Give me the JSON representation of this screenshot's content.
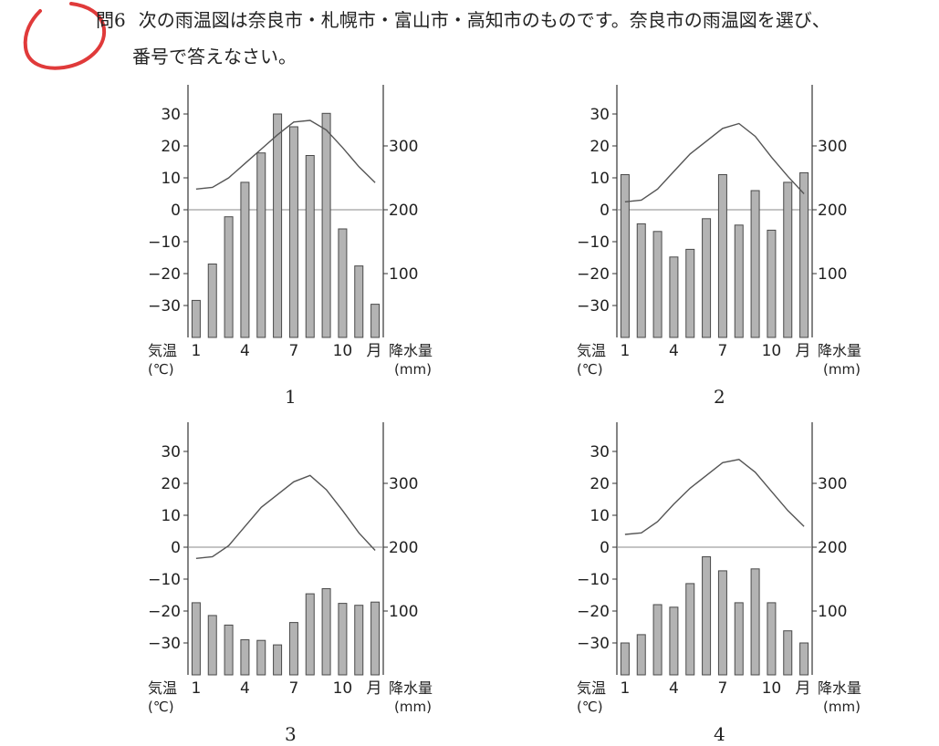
{
  "question": {
    "number": "問6",
    "text_line1": "次の雨温図は奈良市・札幌市・富山市・高知市のものです。奈良市の雨温図を選び、",
    "text_line2": "番号で答えなさい。"
  },
  "axis_labels": {
    "left": [
      "気温",
      "(℃)"
    ],
    "right": [
      "降水量",
      "(mm)"
    ],
    "month_unit": "月"
  },
  "colors": {
    "bar_fill": "#b3b3b3",
    "bar_stroke": "#4a4a4a",
    "line": "#555555",
    "red_mark": "#e03a3a"
  },
  "chart_data": [
    {
      "type": "bar",
      "number": "1",
      "months": [
        1,
        2,
        3,
        4,
        5,
        6,
        7,
        8,
        9,
        10,
        11,
        12
      ],
      "x_tick_labels": [
        "1",
        "4",
        "7",
        "10"
      ],
      "temp_ticks": [
        30,
        20,
        10,
        0,
        -10,
        -20,
        -30
      ],
      "temp_tick_labels": [
        "30",
        "20",
        "10",
        "0",
        "−10",
        "−20",
        "−30"
      ],
      "precip_ticks": [
        300,
        200,
        100
      ],
      "precip_tick_labels": [
        "300",
        "200",
        "100"
      ],
      "temperature": [
        6.5,
        7.0,
        10.0,
        14.5,
        19.0,
        23.5,
        27.5,
        28.0,
        25.0,
        19.5,
        13.5,
        8.5
      ],
      "precipitation": [
        58,
        115,
        189,
        243,
        289,
        350,
        330,
        285,
        351,
        170,
        112,
        52
      ]
    },
    {
      "type": "bar",
      "number": "2",
      "months": [
        1,
        2,
        3,
        4,
        5,
        6,
        7,
        8,
        9,
        10,
        11,
        12
      ],
      "x_tick_labels": [
        "1",
        "4",
        "7",
        "10"
      ],
      "temp_ticks": [
        30,
        20,
        10,
        0,
        -10,
        -20,
        -30
      ],
      "temp_tick_labels": [
        "30",
        "20",
        "10",
        "0",
        "−10",
        "−20",
        "−30"
      ],
      "precip_ticks": [
        300,
        200,
        100
      ],
      "precip_tick_labels": [
        "300",
        "200",
        "100"
      ],
      "temperature": [
        2.5,
        3.0,
        6.5,
        12.0,
        17.5,
        21.5,
        25.5,
        27.0,
        23.0,
        16.5,
        10.5,
        5.0
      ],
      "precipitation": [
        255,
        178,
        166,
        126,
        138,
        186,
        255,
        176,
        230,
        168,
        243,
        258
      ]
    },
    {
      "type": "bar",
      "number": "3",
      "months": [
        1,
        2,
        3,
        4,
        5,
        6,
        7,
        8,
        9,
        10,
        11,
        12
      ],
      "x_tick_labels": [
        "1",
        "4",
        "7",
        "10"
      ],
      "temp_ticks": [
        30,
        20,
        10,
        0,
        -10,
        -20,
        -30
      ],
      "temp_tick_labels": [
        "30",
        "20",
        "10",
        "0",
        "−10",
        "−20",
        "−30"
      ],
      "precip_ticks": [
        300,
        200,
        100
      ],
      "precip_tick_labels": [
        "300",
        "200",
        "100"
      ],
      "temperature": [
        -3.5,
        -3.0,
        0.5,
        6.5,
        12.5,
        16.5,
        20.5,
        22.5,
        18.0,
        11.5,
        4.5,
        -1.0
      ],
      "precipitation": [
        113,
        93,
        78,
        55,
        54,
        47,
        82,
        127,
        135,
        112,
        109,
        114
      ]
    },
    {
      "type": "bar",
      "number": "4",
      "months": [
        1,
        2,
        3,
        4,
        5,
        6,
        7,
        8,
        9,
        10,
        11,
        12
      ],
      "x_tick_labels": [
        "1",
        "4",
        "7",
        "10"
      ],
      "temp_ticks": [
        30,
        20,
        10,
        0,
        -10,
        -20,
        -30
      ],
      "temp_tick_labels": [
        "30",
        "20",
        "10",
        "0",
        "−10",
        "−20",
        "−30"
      ],
      "precip_ticks": [
        300,
        200,
        100
      ],
      "precip_tick_labels": [
        "300",
        "200",
        "100"
      ],
      "temperature": [
        4.0,
        4.5,
        8.0,
        13.5,
        18.5,
        22.5,
        26.5,
        27.5,
        23.5,
        17.5,
        11.5,
        6.5
      ],
      "precipitation": [
        50,
        63,
        110,
        106,
        143,
        185,
        163,
        113,
        166,
        113,
        69,
        50
      ]
    }
  ]
}
